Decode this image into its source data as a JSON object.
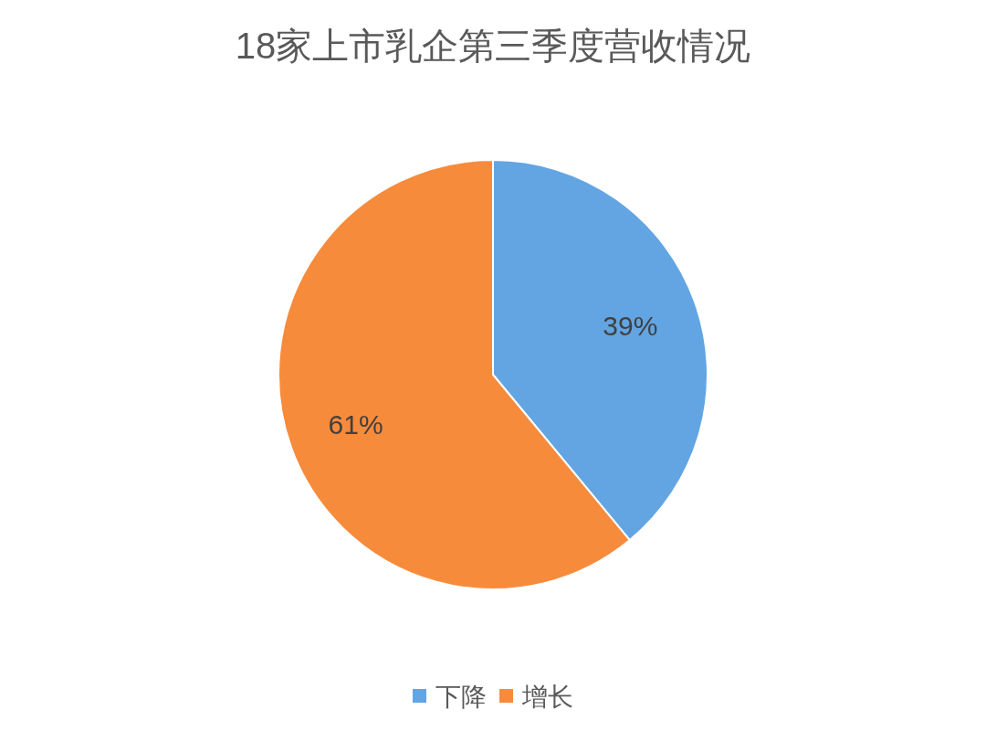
{
  "chart_data": {
    "type": "pie",
    "title": "18家上市乳企第三季度营收情况",
    "categories": [
      "下降",
      "增长"
    ],
    "values": [
      39,
      61
    ],
    "colors": [
      "#62a5e2",
      "#f78b3c"
    ],
    "value_labels": [
      "39%",
      "61%"
    ],
    "legend": "bottom"
  }
}
